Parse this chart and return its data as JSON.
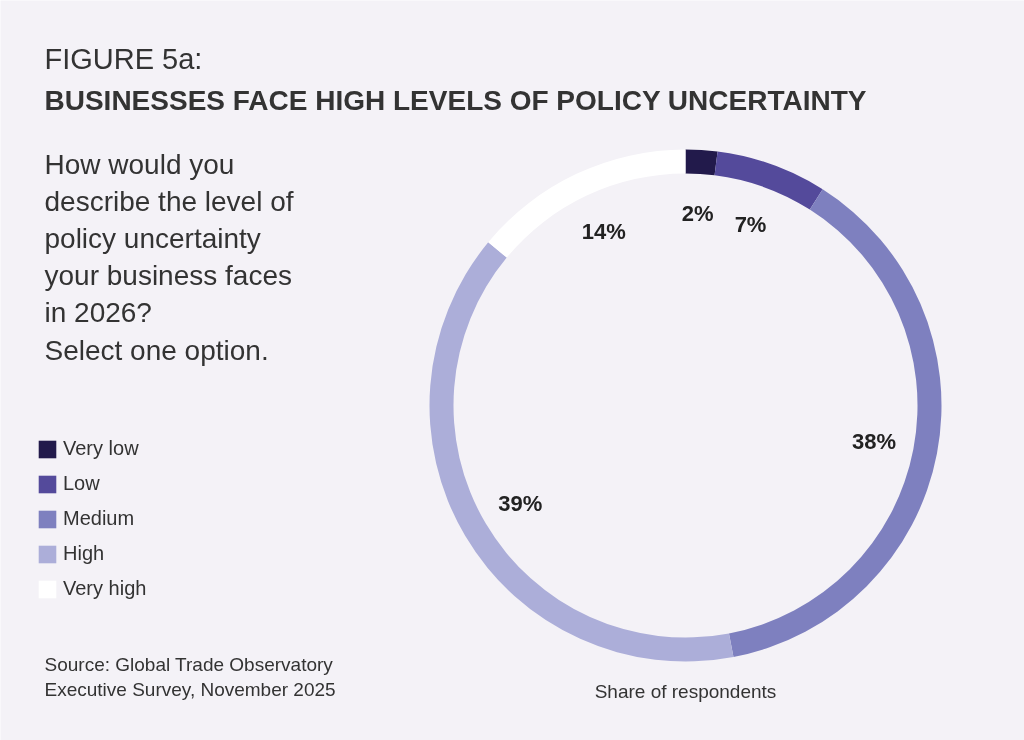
{
  "chart_data": {
    "type": "donut",
    "title": "BUSINESSES FACE HIGH LEVELS OF POLICY UNCERTAINTY",
    "subtitle": "How would you\ndescribe the level of\npolicy uncertainty\nyour business faces\nin 2026?\nSelect one option.",
    "xlabel": "Share of respondents",
    "annotations": [
      "FIGURE 5a:",
      "Source: Global Trade Observatory\nExecutive Survey, November 2025"
    ],
    "categories": [
      "Very low",
      "Low",
      "Medium",
      "High",
      "Very high"
    ],
    "values": [
      2,
      7,
      38,
      39,
      14
    ],
    "value_labels": [
      "2%",
      "7%",
      "38%",
      "39%",
      "14%"
    ],
    "colors": [
      "#221a4b",
      "#544a9b",
      "#7e80bf",
      "#acaed9",
      "#ffffff"
    ],
    "legend": "left"
  }
}
